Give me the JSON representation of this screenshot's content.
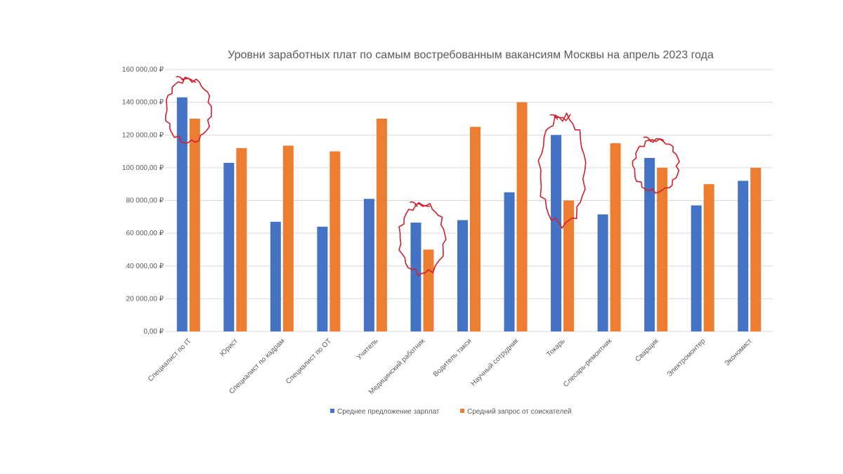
{
  "chart_data": {
    "type": "bar",
    "title": "Уровни заработных плат по самым востребованным вакансиям Москвы на апрель 2023 года",
    "categories": [
      "Специалист по IT",
      "Юрист",
      "Специалист по кадрам",
      "Специалист по ОТ",
      "Учитель",
      "Медицинский работник",
      "Водитель такси",
      "Научный сотрудник",
      "Токарь",
      "Слесарь-ремонтник",
      "Сварщик",
      "Электромонтер",
      "Экономист"
    ],
    "series": [
      {
        "name": "Среднее предложение зарплат",
        "color": "#4472c4",
        "values": [
          143000,
          103000,
          67000,
          64000,
          81000,
          66500,
          68000,
          85000,
          120000,
          71500,
          106000,
          77000,
          92000
        ]
      },
      {
        "name": "Средний запрос от соискателей",
        "color": "#ed7d31",
        "values": [
          130000,
          112000,
          113500,
          110000,
          130000,
          50000,
          125000,
          140000,
          80000,
          115000,
          100000,
          90000,
          100000
        ]
      }
    ],
    "ylim": [
      0,
      160000
    ],
    "ytick_labels": [
      "0,00 ₽",
      "20 000,00 ₽",
      "40 000,00 ₽",
      "60 000,00 ₽",
      "80 000,00 ₽",
      "100 000,00 ₽",
      "120 000,00 ₽",
      "140 000,00 ₽",
      "160 000,00 ₽"
    ],
    "grid": true,
    "legend_position": "bottom",
    "annotations": {
      "type": "hand-drawn red circles",
      "color": "#d0202a",
      "circled_categories": [
        "Специалист по IT",
        "Медицинский работник",
        "Токарь",
        "Сварщик"
      ]
    }
  }
}
